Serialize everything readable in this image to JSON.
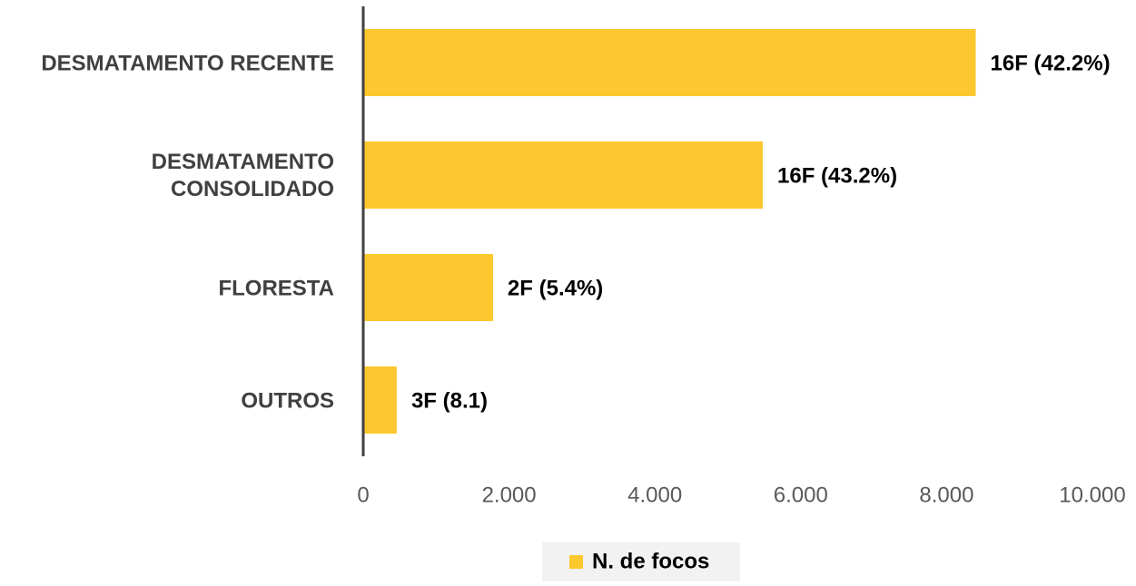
{
  "chart_data": {
    "type": "bar",
    "orientation": "horizontal",
    "categories": [
      "DESMATAMENTO RECENTE",
      "DESMATAMENTO\nCONSOLIDADO",
      "FLORESTA",
      "OUTROS"
    ],
    "series": [
      {
        "name": "N. de focos",
        "color": "#fdc82f",
        "values": [
          8400,
          5480,
          1780,
          460
        ]
      }
    ],
    "annotations": [
      "16F (42.2%)",
      "16F (43.2%)",
      "2F (5.4%)",
      "3F (8.1)"
    ],
    "xlim": [
      0,
      10000
    ],
    "xticks": [
      0,
      {
        "value": 2000,
        "label": "2.000"
      },
      {
        "value": 4000,
        "label": "4.000"
      },
      {
        "value": 6000,
        "label": "6.000"
      },
      {
        "value": 8000,
        "label": "8.000"
      },
      {
        "value": 10000,
        "label": "10.000"
      }
    ],
    "grid": false,
    "legend": "bottom"
  }
}
